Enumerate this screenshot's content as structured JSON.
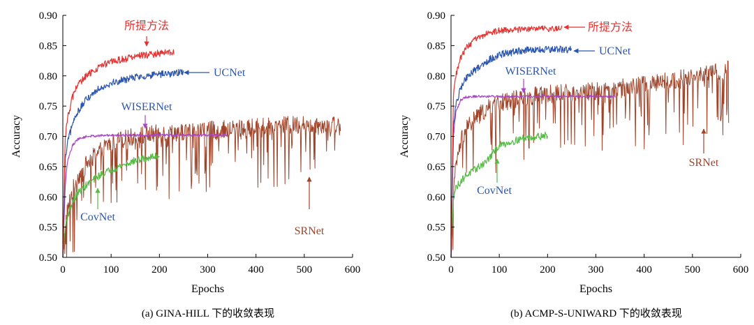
{
  "figure": {
    "captions": [
      "(a) GINA-HILL 下的收敛表现",
      "(b) ACMP-S-UNIWARD 下的收敛表现"
    ]
  },
  "chart_data": [
    {
      "type": "line",
      "caption": "(a) GINA-HILL 下的收敛表现",
      "xlabel": "Epochs",
      "ylabel": "Accuracy",
      "xlim": [
        0,
        600
      ],
      "ylim": [
        0.5,
        0.9
      ],
      "xticks": [
        "0",
        "100",
        "200",
        "300",
        "400",
        "500",
        "600"
      ],
      "yticks": [
        "0.50",
        "0.55",
        "0.60",
        "0.65",
        "0.70",
        "0.75",
        "0.80",
        "0.85",
        "0.90"
      ],
      "grid": false,
      "series": [
        {
          "name": "SRNet",
          "color": "#a0442a",
          "x": [
            0,
            5,
            10,
            20,
            30,
            50,
            75,
            100,
            150,
            200,
            300,
            400,
            500,
            575
          ],
          "values": [
            0.5,
            0.55,
            0.58,
            0.61,
            0.63,
            0.655,
            0.675,
            0.69,
            0.7,
            0.705,
            0.71,
            0.715,
            0.72,
            0.72
          ],
          "noise": 0.015,
          "dips": 0.1,
          "dipProb": 0.18
        },
        {
          "name": "CovNet",
          "color": "#55bb44",
          "x": [
            0,
            5,
            10,
            20,
            30,
            50,
            75,
            100,
            150,
            200
          ],
          "values": [
            0.5,
            0.55,
            0.57,
            0.59,
            0.605,
            0.62,
            0.635,
            0.645,
            0.66,
            0.668
          ],
          "noise": 0.006,
          "dips": 0,
          "dipProb": 0
        },
        {
          "name": "WISERNet",
          "color": "#aa44cc",
          "x": [
            0,
            5,
            10,
            20,
            30,
            50,
            100,
            200,
            340
          ],
          "values": [
            0.5,
            0.62,
            0.66,
            0.685,
            0.695,
            0.7,
            0.702,
            0.702,
            0.702
          ],
          "noise": 0.002,
          "dips": 0,
          "dipProb": 0
        },
        {
          "name": "UCNet",
          "color": "#2a55b0",
          "x": [
            0,
            5,
            10,
            20,
            30,
            50,
            75,
            100,
            150,
            200,
            250
          ],
          "values": [
            0.5,
            0.66,
            0.69,
            0.72,
            0.74,
            0.762,
            0.78,
            0.788,
            0.798,
            0.802,
            0.806
          ],
          "noise": 0.006,
          "dips": 0,
          "dipProb": 0
        },
        {
          "name": "所提方法",
          "color": "#e5312f",
          "x": [
            0,
            5,
            10,
            20,
            30,
            50,
            75,
            100,
            150,
            200,
            230
          ],
          "values": [
            0.5,
            0.7,
            0.73,
            0.765,
            0.785,
            0.8,
            0.815,
            0.823,
            0.832,
            0.837,
            0.84
          ],
          "noise": 0.006,
          "dips": 0,
          "dipProb": 0
        }
      ],
      "annotations": [
        {
          "text": "所提方法",
          "color": "#e5312f",
          "at": [
            180,
            0.866
          ]
        },
        {
          "text": "UCNet",
          "color": "#2a55b0",
          "at": [
            310,
            0.807
          ]
        },
        {
          "text": "WISERNet",
          "color": "#2a55b0",
          "at": [
            175,
            0.72
          ]
        },
        {
          "text": "CovNet",
          "color": "#2a55b0",
          "at": [
            75,
            0.582
          ]
        },
        {
          "text": "SRNet",
          "color": "#a0442a",
          "at": [
            525,
            0.578
          ]
        }
      ]
    },
    {
      "type": "line",
      "caption": "(b) ACMP-S-UNIWARD 下的收敛表现",
      "xlabel": "Epochs",
      "ylabel": "Accuracy",
      "xlim": [
        0,
        600
      ],
      "ylim": [
        0.5,
        0.9
      ],
      "xticks": [
        "0",
        "100",
        "200",
        "300",
        "400",
        "500",
        "600"
      ],
      "yticks": [
        "0.50",
        "0.55",
        "0.60",
        "0.65",
        "0.70",
        "0.75",
        "0.80",
        "0.85",
        "0.90"
      ],
      "grid": false,
      "series": [
        {
          "name": "SRNet",
          "color": "#a0442a",
          "x": [
            0,
            5,
            10,
            20,
            30,
            50,
            75,
            100,
            150,
            200,
            300,
            400,
            500,
            575
          ],
          "values": [
            0.5,
            0.6,
            0.65,
            0.69,
            0.71,
            0.73,
            0.745,
            0.755,
            0.765,
            0.77,
            0.775,
            0.785,
            0.8,
            0.81
          ],
          "noise": 0.015,
          "dips": 0.1,
          "dipProb": 0.18
        },
        {
          "name": "CovNet",
          "color": "#55bb44",
          "x": [
            0,
            5,
            10,
            20,
            30,
            50,
            75,
            100,
            150,
            200
          ],
          "values": [
            0.5,
            0.6,
            0.615,
            0.625,
            0.635,
            0.645,
            0.66,
            0.685,
            0.697,
            0.702
          ],
          "noise": 0.006,
          "dips": 0,
          "dipProb": 0
        },
        {
          "name": "WISERNet",
          "color": "#aa44cc",
          "x": [
            0,
            5,
            10,
            20,
            30,
            50,
            100,
            200,
            340
          ],
          "values": [
            0.5,
            0.7,
            0.74,
            0.76,
            0.765,
            0.766,
            0.766,
            0.766,
            0.766
          ],
          "noise": 0.002,
          "dips": 0,
          "dipProb": 0
        },
        {
          "name": "UCNet",
          "color": "#2a55b0",
          "x": [
            0,
            5,
            10,
            20,
            30,
            50,
            75,
            100,
            150,
            200,
            250
          ],
          "values": [
            0.5,
            0.72,
            0.75,
            0.78,
            0.795,
            0.81,
            0.825,
            0.835,
            0.842,
            0.843,
            0.844
          ],
          "noise": 0.006,
          "dips": 0,
          "dipProb": 0
        },
        {
          "name": "所提方法",
          "color": "#e5312f",
          "x": [
            0,
            5,
            10,
            20,
            30,
            50,
            75,
            100,
            150,
            200,
            230
          ],
          "values": [
            0.5,
            0.77,
            0.8,
            0.83,
            0.845,
            0.86,
            0.87,
            0.875,
            0.877,
            0.878,
            0.878
          ],
          "noise": 0.005,
          "dips": 0,
          "dipProb": 0
        }
      ],
      "annotations": [
        {
          "text": "所提方法",
          "color": "#e5312f",
          "at": [
            285,
            0.877
          ]
        },
        {
          "text": "UCNet",
          "color": "#2a55b0",
          "at": [
            300,
            0.843
          ]
        },
        {
          "text": "WISERNet",
          "color": "#2a55b0",
          "at": [
            140,
            0.808
          ]
        },
        {
          "text": "CovNet",
          "color": "#2a55b0",
          "at": [
            85,
            0.6
          ]
        },
        {
          "text": "SRNet",
          "color": "#a0442a",
          "at": [
            530,
            0.658
          ]
        }
      ]
    }
  ]
}
